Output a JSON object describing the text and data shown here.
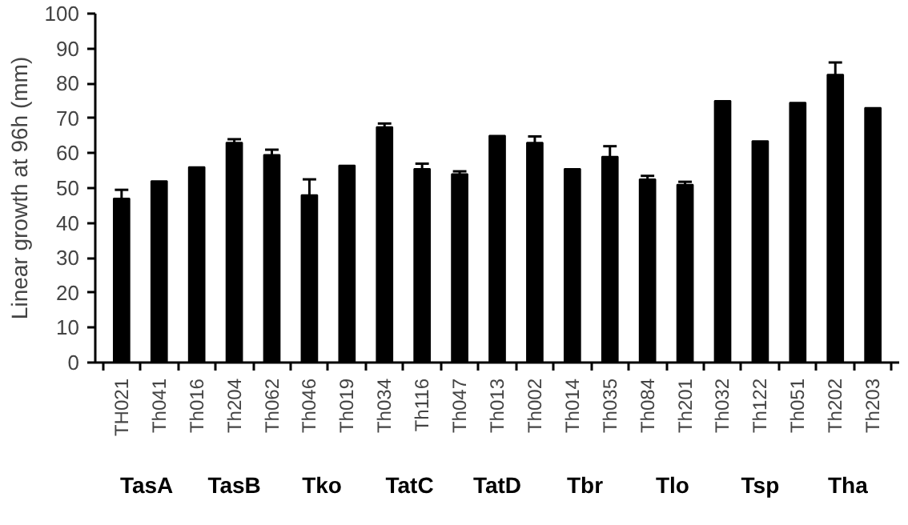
{
  "chart_data": {
    "type": "bar",
    "ylabel": "Linear growth at 96h (mm)",
    "categories": [
      "TH021",
      "Th041",
      "Th016",
      "Th204",
      "Th062",
      "Th046",
      "Th019",
      "Th034",
      "Th116",
      "Th047",
      "Th013",
      "Th002",
      "Th014",
      "Th035",
      "Th084",
      "Th201",
      "Th032",
      "Th122",
      "Th051",
      "Th202",
      "Th203"
    ],
    "values": [
      47,
      52,
      56,
      63,
      59.5,
      48,
      56.5,
      67.5,
      55.5,
      54,
      65,
      63,
      55.5,
      59,
      52.5,
      51,
      75,
      63.5,
      74.5,
      82.5,
      73
    ],
    "errors": [
      2.5,
      null,
      null,
      1,
      1.5,
      4.5,
      null,
      1,
      1.5,
      0.8,
      null,
      1.8,
      null,
      3,
      1,
      0.8,
      null,
      null,
      null,
      3.5,
      null
    ],
    "color": "#000000",
    "ylim": [
      0,
      100
    ],
    "yticks": [
      0,
      10,
      20,
      30,
      40,
      50,
      60,
      70,
      80,
      90,
      100
    ],
    "grid": false,
    "annotations": [
      "TasA",
      "TasB",
      "Tko",
      "TatC",
      "TatD",
      "Tbr",
      "Tlo",
      "Tsp",
      "Tha"
    ]
  }
}
